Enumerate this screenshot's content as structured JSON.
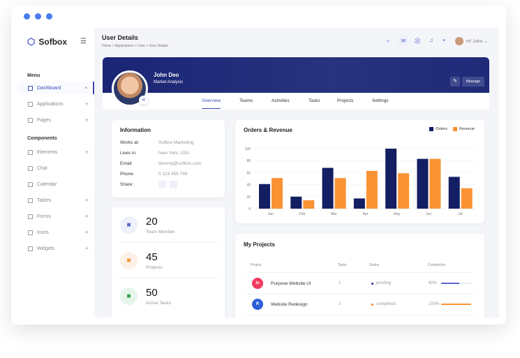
{
  "brand": "Sofbox",
  "sidebar": {
    "menu_label": "Menu",
    "components_label": "Components",
    "items": [
      {
        "label": "Dashboard",
        "icon": "home-icon",
        "mark": "•"
      },
      {
        "label": "Applications",
        "icon": "clipboard-icon",
        "mark": "+"
      },
      {
        "label": "Pages",
        "icon": "pages-icon",
        "mark": "+"
      }
    ],
    "components": [
      {
        "label": "Elements",
        "mark": "+"
      },
      {
        "label": "Chat",
        "mark": ""
      },
      {
        "label": "Calendar",
        "mark": ""
      },
      {
        "label": "Tables",
        "mark": "+"
      },
      {
        "label": "Forms",
        "mark": "+"
      },
      {
        "label": "Icons",
        "mark": "+"
      },
      {
        "label": "Widgets",
        "mark": "+"
      }
    ]
  },
  "header": {
    "title": "User Details",
    "breadcrumb": "Home > Applications > User > User Details",
    "greeting": "Hi' John"
  },
  "profile": {
    "name": "John Deo",
    "role": "Market Analysis",
    "message_label": "Message",
    "tabs": [
      "Overview",
      "Teams",
      "Activities",
      "Tasks",
      "Projects",
      "Settings"
    ],
    "active_tab": "Overview"
  },
  "information": {
    "title": "Information",
    "rows": [
      {
        "k": "Works at:",
        "v": "Sofbox Marketing"
      },
      {
        "k": "Lives in:",
        "v": "New York, USA"
      },
      {
        "k": "Email:",
        "v": "dummy@sofbox.com"
      },
      {
        "k": "Phone:",
        "v": "0 123 456 789"
      },
      {
        "k": "Share:",
        "v": ""
      }
    ]
  },
  "stats": [
    {
      "value": "20",
      "label": "Team Member",
      "color": "#eef0fb",
      "fg": "#5b67c9"
    },
    {
      "value": "45",
      "label": "Projects",
      "color": "#fdf0e6",
      "fg": "#f29a3a"
    },
    {
      "value": "50",
      "label": "Active Tasks",
      "color": "#e6f5ea",
      "fg": "#2fa34a"
    }
  ],
  "chart_data": {
    "type": "bar",
    "title": "Orders & Revenue",
    "categories": [
      "Jan",
      "Feb",
      "Mar",
      "Apr",
      "May",
      "Jun",
      "Jul"
    ],
    "series": [
      {
        "name": "Orders",
        "color": "#141e62",
        "values": [
          41,
          20,
          68,
          17,
          100,
          83,
          53
        ]
      },
      {
        "name": "Revenue",
        "color": "#fb9234",
        "values": [
          51,
          14,
          51,
          63,
          59,
          83,
          34
        ]
      }
    ],
    "ylim": [
      0,
      100
    ],
    "yticks": [
      0,
      20,
      40,
      60,
      80,
      100
    ],
    "grid": true,
    "legend": "top-right"
  },
  "projects": {
    "title": "My Projects",
    "columns": [
      "Project",
      "Tasks",
      "Status",
      "Completion"
    ],
    "rows": [
      {
        "name": "Purpose Website UI",
        "tasks": "1",
        "status": "pending",
        "status_color": "#1e2a9c",
        "completion": "60%",
        "pct": 60,
        "bar_color": "#5b67c9",
        "logo": "In",
        "logo_color": "#f03a5f"
      },
      {
        "name": "Website Redesign",
        "tasks": "2",
        "status": "completed",
        "status_color": "#fb7a1e",
        "completion": "100%",
        "pct": 100,
        "bar_color": "#fb9234",
        "logo": "R",
        "logo_color": "#2c5fd6"
      }
    ]
  }
}
